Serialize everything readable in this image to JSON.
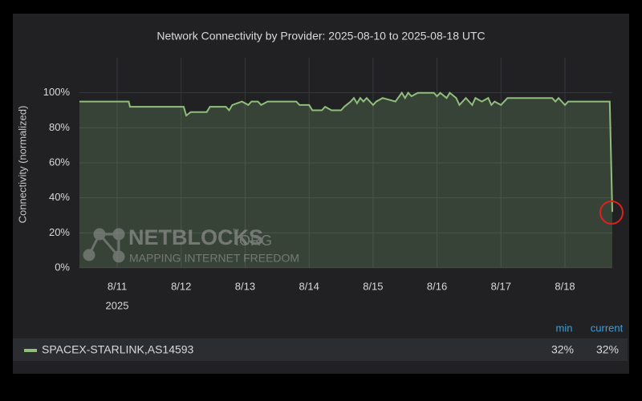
{
  "chart_data": {
    "type": "area",
    "title": "Network Connectivity by Provider: 2025-08-10 to 2025-08-18 UTC",
    "y_label": "Connectivity (normalized)",
    "x_year": "2025",
    "x": [
      10.41,
      11.18,
      11.2,
      12.04,
      12.08,
      12.15,
      12.4,
      12.45,
      12.7,
      12.75,
      12.8,
      12.95,
      13.05,
      13.1,
      13.2,
      13.25,
      13.35,
      13.8,
      13.85,
      14.0,
      14.05,
      14.2,
      14.25,
      14.35,
      14.5,
      14.55,
      14.65,
      14.7,
      14.75,
      14.8,
      14.85,
      14.9,
      15.0,
      15.05,
      15.15,
      15.35,
      15.45,
      15.5,
      15.55,
      15.6,
      15.7,
      15.95,
      16.0,
      16.05,
      16.15,
      16.2,
      16.3,
      16.35,
      16.45,
      16.55,
      16.6,
      16.7,
      16.8,
      16.85,
      16.9,
      17.0,
      17.1,
      17.8,
      17.85,
      17.9,
      18.0,
      18.05,
      18.7,
      18.74
    ],
    "series": [
      {
        "name": "SPACEX-STARLINK,AS14593",
        "color": "#8fbf7a",
        "values": [
          95,
          95,
          92,
          92,
          87,
          89,
          89,
          92,
          92,
          90,
          93,
          95,
          93,
          95,
          95,
          93,
          95,
          95,
          93,
          93,
          90,
          90,
          92,
          90,
          90,
          92,
          95,
          97,
          94,
          97,
          95,
          97,
          93,
          95,
          97,
          95,
          100,
          97,
          100,
          98,
          100,
          100,
          98,
          100,
          97,
          100,
          97,
          93,
          97,
          93,
          97,
          95,
          97,
          93,
          95,
          93,
          97,
          97,
          95,
          97,
          93,
          95,
          95,
          32
        ]
      }
    ],
    "xlim": [
      10.41,
      18.74
    ],
    "xticks": [
      {
        "value": 11,
        "label": "8/11"
      },
      {
        "value": 12,
        "label": "8/12"
      },
      {
        "value": 13,
        "label": "8/13"
      },
      {
        "value": 14,
        "label": "8/14"
      },
      {
        "value": 15,
        "label": "8/15"
      },
      {
        "value": 16,
        "label": "8/16"
      },
      {
        "value": 17,
        "label": "8/17"
      },
      {
        "value": 18,
        "label": "8/18"
      }
    ],
    "ylim": [
      0,
      120
    ],
    "yticks": [
      {
        "value": 0,
        "label": "0%"
      },
      {
        "value": 20,
        "label": "20%"
      },
      {
        "value": 40,
        "label": "40%"
      },
      {
        "value": 60,
        "label": "60%"
      },
      {
        "value": 80,
        "label": "80%"
      },
      {
        "value": 100,
        "label": "100%"
      }
    ],
    "grid": true,
    "legend": {
      "columns": [
        "min",
        "current"
      ],
      "stats": [
        {
          "value": 32,
          "label": "32%"
        },
        {
          "value": 32,
          "label": "32%"
        }
      ]
    },
    "watermark": {
      "brand": "NETBLOCKS",
      "mark": "™",
      "domain": ".ORG",
      "tagline": "MAPPING INTERNET FREEDOM"
    }
  }
}
